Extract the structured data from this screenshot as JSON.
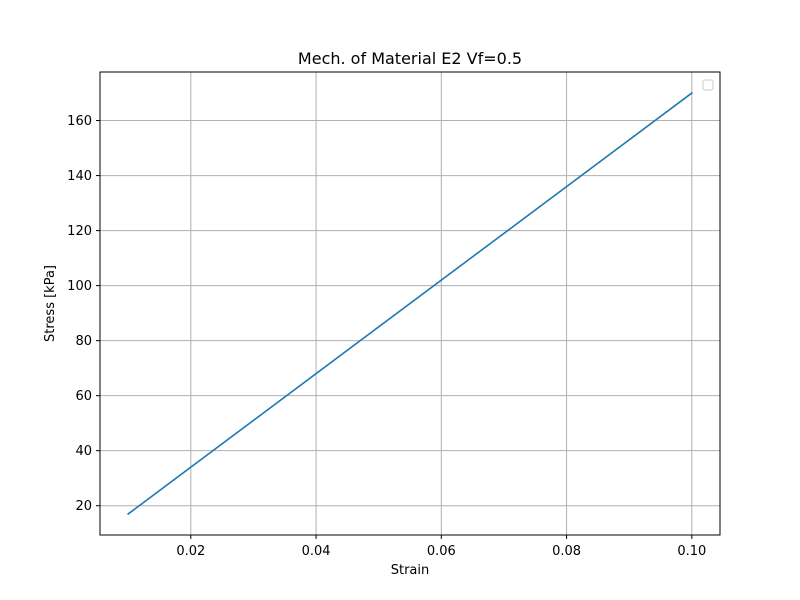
{
  "chart_data": {
    "type": "line",
    "title": "Mech. of Material E2 Vf=0.5",
    "xlabel": "Strain",
    "ylabel": "Stress [kPa]",
    "xlim": [
      0.0055,
      0.1045
    ],
    "ylim": [
      9.35,
      177.65
    ],
    "xticks": [
      0.02,
      0.04,
      0.06,
      0.08,
      0.1
    ],
    "xtick_labels": [
      "0.02",
      "0.04",
      "0.06",
      "0.08",
      "0.10"
    ],
    "yticks": [
      20,
      40,
      60,
      80,
      100,
      120,
      140,
      160
    ],
    "ytick_labels": [
      "20",
      "40",
      "60",
      "80",
      "100",
      "120",
      "140",
      "160"
    ],
    "grid": true,
    "legend": {
      "placement": "top-right",
      "entries": []
    },
    "series": [
      {
        "color": "#1f77b4",
        "x": [
          0.01,
          0.1
        ],
        "y": [
          17,
          170
        ]
      }
    ]
  }
}
